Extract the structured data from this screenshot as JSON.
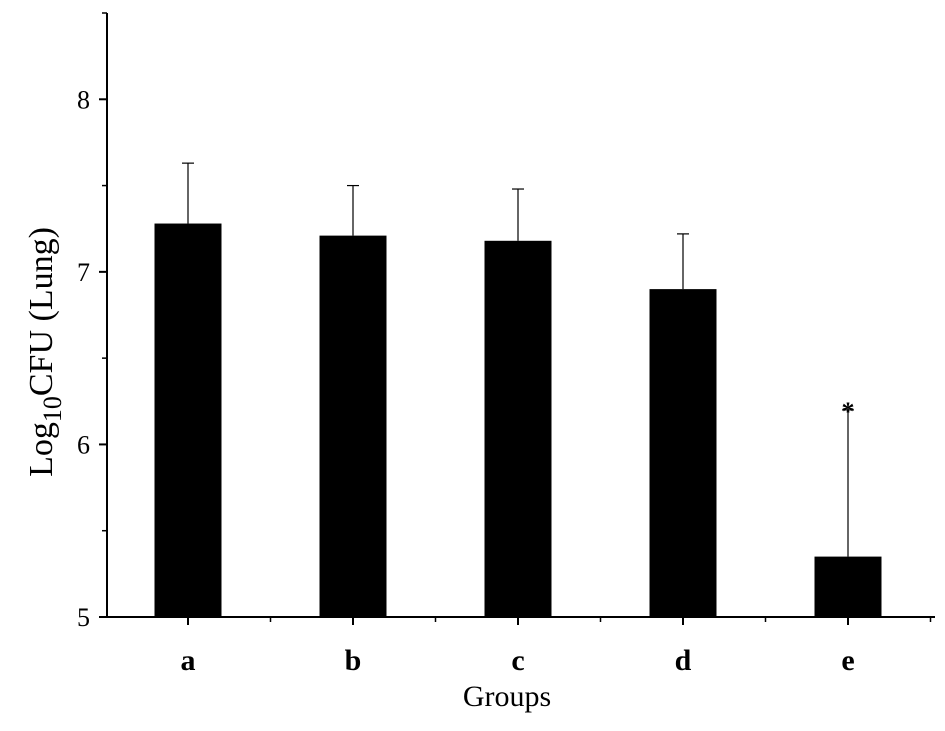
{
  "chart_data": {
    "type": "bar",
    "categories": [
      "a",
      "b",
      "c",
      "d",
      "e"
    ],
    "values": [
      7.28,
      7.21,
      7.18,
      6.9,
      5.35
    ],
    "error_upper": [
      7.63,
      7.5,
      7.48,
      7.22,
      6.2
    ],
    "annotations": [
      {
        "category": "e",
        "text": "*"
      }
    ],
    "xlabel": "Groups",
    "ylabel": {
      "prefix": "Log",
      "subscript": "10",
      "suffix": "CFU  (Lung)"
    },
    "ylim": [
      5,
      8.5
    ],
    "yticks": [
      5,
      6,
      7,
      8
    ],
    "ytick_labels": [
      "5",
      "6",
      "7",
      "8"
    ],
    "grid": false,
    "bar_color": "#000000",
    "axis_color": "#000000"
  }
}
